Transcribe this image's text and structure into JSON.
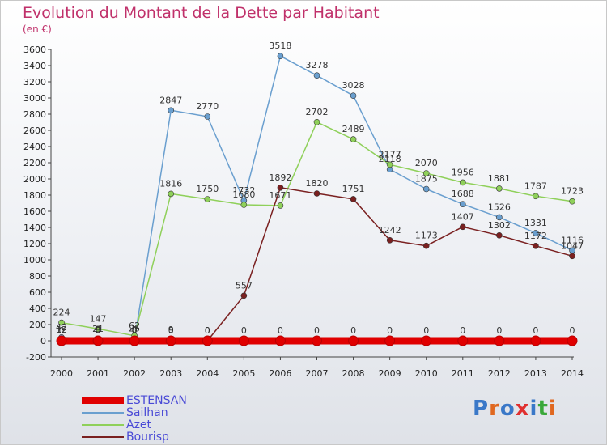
{
  "title": "Evolution du Montant de la Dette par Habitant",
  "subtitle": "(en €)",
  "logo_text": "Proxiti",
  "chart_data": {
    "type": "line",
    "x": [
      "2000",
      "2001",
      "2002",
      "2003",
      "2004",
      "2005",
      "2006",
      "2007",
      "2008",
      "2009",
      "2010",
      "2011",
      "2012",
      "2013",
      "2014"
    ],
    "ylim": [
      -200,
      3600
    ],
    "ytick_step": 200,
    "grid": false,
    "legend_position": "bottom-left",
    "series": [
      {
        "name": "ESTENSAN",
        "color": "#e00000",
        "values": [
          0,
          0,
          0,
          0,
          0,
          0,
          0,
          0,
          0,
          0,
          0,
          0,
          0,
          0,
          0
        ],
        "labels": [
          "0",
          "0",
          "0",
          "0",
          "0",
          "0",
          "0",
          "0",
          "0",
          "0",
          "0",
          "0",
          "0",
          "0",
          "0"
        ]
      },
      {
        "name": "Sailhan",
        "color": "#6a9fcf",
        "values": [
          42,
          21,
          8,
          2847,
          2770,
          1732,
          3518,
          3278,
          3028,
          2118,
          1875,
          1688,
          1526,
          1331,
          1116
        ],
        "labels": [
          "42",
          "21",
          "8",
          "2847",
          "2770",
          "1732",
          "3518",
          "3278",
          "3028",
          "2118",
          "1875",
          "1688",
          "1526",
          "1331",
          "1116"
        ]
      },
      {
        "name": "Azet",
        "color": "#8fd05a",
        "values": [
          224,
          147,
          62,
          1816,
          1750,
          1680,
          1671,
          2702,
          2489,
          2177,
          2070,
          1956,
          1881,
          1787,
          1723
        ],
        "labels": [
          "224",
          "147",
          "62",
          "1816",
          "1750",
          "1680",
          "1671",
          "2702",
          "2489",
          "2177",
          "2070",
          "1956",
          "1881",
          "1787",
          "1723"
        ]
      },
      {
        "name": "Bourisp",
        "color": "#7a2020",
        "values": [
          12,
          9,
          25,
          9,
          0,
          557,
          1892,
          1820,
          1751,
          1242,
          1173,
          1407,
          1302,
          1172,
          1047
        ],
        "labels": [
          "12",
          "9",
          "25",
          "9",
          "0",
          "557",
          "1892",
          "1820",
          "1751",
          "1242",
          "1173",
          "1407",
          "1302",
          "1172",
          "1047"
        ]
      }
    ]
  }
}
